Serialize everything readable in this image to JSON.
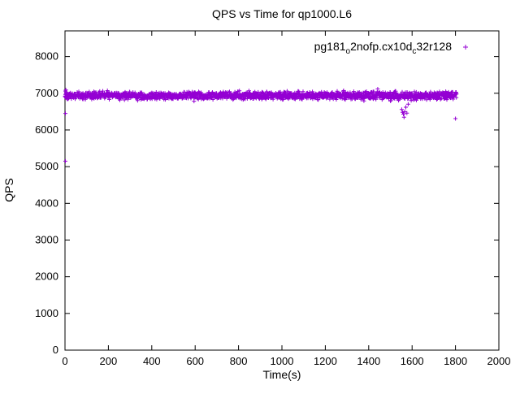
{
  "chart_data": {
    "type": "scatter",
    "title": "QPS vs Time for qp1000.L6",
    "xlabel": "Time(s)",
    "ylabel": "QPS",
    "xlim": [
      0,
      2000
    ],
    "ylim": [
      0,
      8700
    ],
    "xticks": [
      0,
      200,
      400,
      600,
      800,
      1000,
      1200,
      1400,
      1600,
      1800,
      2000
    ],
    "yticks": [
      0,
      1000,
      2000,
      3000,
      4000,
      5000,
      6000,
      7000,
      8000
    ],
    "grid": false,
    "legend_position": "top-right-inside",
    "marker_color": "#9400D3",
    "series": [
      {
        "name": "pg181_o2nofp.cx10d_c32r128",
        "label_segments": [
          {
            "text": "pg181"
          },
          {
            "sub": "o"
          },
          {
            "text": "2nofp.cx10d"
          },
          {
            "sub": "c"
          },
          {
            "text": "32r128"
          }
        ],
        "color": "#9400D3",
        "marker": "plus",
        "band": {
          "x_start": 0,
          "x_end": 1805,
          "n": 1700,
          "y_mean": 6940,
          "y_spread": 50,
          "seed": 1337,
          "description": "dense steady band of QPS samples between ~6800 and ~7090 for the whole run"
        },
        "outliers": [
          [
            2,
            7060
          ],
          [
            4,
            7090
          ],
          [
            6,
            7030
          ],
          [
            2,
            6450
          ],
          [
            2,
            5150
          ],
          [
            1378,
            6790
          ],
          [
            1500,
            6790
          ],
          [
            1552,
            6560
          ],
          [
            1556,
            6480
          ],
          [
            1560,
            6430
          ],
          [
            1563,
            6350
          ],
          [
            1566,
            6500
          ],
          [
            1571,
            6620
          ],
          [
            1576,
            6460
          ],
          [
            1582,
            6700
          ],
          [
            1620,
            6810
          ],
          [
            1800,
            6310
          ]
        ]
      }
    ]
  }
}
